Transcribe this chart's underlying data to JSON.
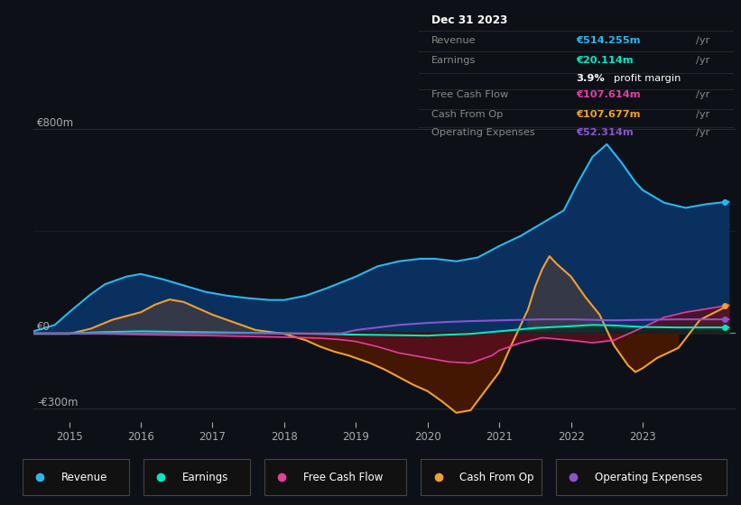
{
  "background_color": "#0d1117",
  "plot_bg_color": "#0d1117",
  "grid_color": "#2a2d3a",
  "text_color": "#aaaaaa",
  "x_ticks": [
    2015,
    2016,
    2017,
    2018,
    2019,
    2020,
    2021,
    2022,
    2023
  ],
  "x_min": 2014.5,
  "x_max": 2024.3,
  "y_min": -350,
  "y_max": 870,
  "revenue_color": "#2ab7f0",
  "earnings_color": "#00e8c6",
  "fcf_color": "#e040a0",
  "cashfromop_color": "#f0a030",
  "opex_color": "#8855cc",
  "info_box": {
    "title": "Dec 31 2023",
    "revenue_label": "Revenue",
    "revenue_value": "€514.255m",
    "earnings_label": "Earnings",
    "earnings_value": "€20.114m",
    "margin_pct": "3.9%",
    "margin_text": " profit margin",
    "fcf_label": "Free Cash Flow",
    "fcf_value": "€107.614m",
    "cop_label": "Cash From Op",
    "cop_value": "€107.677m",
    "opex_label": "Operating Expenses",
    "opex_value": "€52.314m"
  },
  "legend": [
    {
      "label": "Revenue",
      "color": "#2ab7f0"
    },
    {
      "label": "Earnings",
      "color": "#00e8c6"
    },
    {
      "label": "Free Cash Flow",
      "color": "#e040a0"
    },
    {
      "label": "Cash From Op",
      "color": "#f0a030"
    },
    {
      "label": "Operating Expenses",
      "color": "#8855cc"
    }
  ],
  "revenue_x": [
    2014.5,
    2014.8,
    2015.0,
    2015.3,
    2015.5,
    2015.8,
    2016.0,
    2016.3,
    2016.6,
    2016.9,
    2017.2,
    2017.5,
    2017.8,
    2018.0,
    2018.3,
    2018.6,
    2019.0,
    2019.3,
    2019.6,
    2019.9,
    2020.1,
    2020.4,
    2020.7,
    2021.0,
    2021.3,
    2021.6,
    2021.9,
    2022.1,
    2022.3,
    2022.5,
    2022.7,
    2022.9,
    2023.0,
    2023.3,
    2023.6,
    2023.9,
    2024.2
  ],
  "revenue_y": [
    5,
    30,
    80,
    150,
    190,
    220,
    230,
    210,
    185,
    160,
    145,
    135,
    128,
    128,
    145,
    175,
    220,
    260,
    280,
    290,
    290,
    280,
    295,
    340,
    380,
    430,
    480,
    590,
    690,
    740,
    670,
    590,
    560,
    510,
    490,
    505,
    514
  ],
  "earnings_x": [
    2014.5,
    2015.0,
    2015.5,
    2016.0,
    2016.5,
    2017.0,
    2017.5,
    2018.0,
    2018.5,
    2019.0,
    2019.5,
    2020.0,
    2020.3,
    2020.6,
    2021.0,
    2021.5,
    2022.0,
    2022.3,
    2022.6,
    2023.0,
    2023.5,
    2024.2
  ],
  "earnings_y": [
    -3,
    -3,
    2,
    5,
    3,
    1,
    -1,
    -3,
    -5,
    -8,
    -10,
    -12,
    -8,
    -5,
    5,
    18,
    25,
    30,
    28,
    22,
    20,
    20
  ],
  "fcf_x": [
    2014.5,
    2015.0,
    2015.5,
    2016.0,
    2016.5,
    2017.0,
    2017.5,
    2018.0,
    2018.5,
    2018.8,
    2019.0,
    2019.3,
    2019.6,
    2020.0,
    2020.3,
    2020.6,
    2020.9,
    2021.0,
    2021.3,
    2021.6,
    2022.0,
    2022.3,
    2022.6,
    2023.0,
    2023.3,
    2023.6,
    2024.2
  ],
  "fcf_y": [
    -3,
    -5,
    -5,
    -8,
    -10,
    -12,
    -15,
    -18,
    -22,
    -28,
    -35,
    -55,
    -80,
    -100,
    -115,
    -120,
    -90,
    -70,
    -40,
    -20,
    -30,
    -40,
    -30,
    20,
    60,
    80,
    107
  ],
  "cashfromop_x": [
    2014.5,
    2015.0,
    2015.3,
    2015.6,
    2016.0,
    2016.2,
    2016.4,
    2016.6,
    2016.8,
    2017.0,
    2017.3,
    2017.6,
    2018.0,
    2018.3,
    2018.5,
    2018.7,
    2018.9,
    2019.0,
    2019.2,
    2019.4,
    2019.6,
    2019.8,
    2020.0,
    2020.2,
    2020.4,
    2020.6,
    2020.8,
    2021.0,
    2021.2,
    2021.4,
    2021.5,
    2021.6,
    2021.7,
    2021.8,
    2022.0,
    2022.2,
    2022.4,
    2022.6,
    2022.8,
    2022.9,
    2023.0,
    2023.2,
    2023.5,
    2023.8,
    2024.2
  ],
  "cashfromop_y": [
    -5,
    -5,
    15,
    50,
    80,
    110,
    130,
    120,
    95,
    70,
    40,
    10,
    -5,
    -30,
    -55,
    -75,
    -90,
    -100,
    -120,
    -145,
    -175,
    -205,
    -230,
    -270,
    -315,
    -305,
    -230,
    -155,
    -30,
    90,
    180,
    250,
    300,
    270,
    220,
    140,
    70,
    -50,
    -130,
    -155,
    -140,
    -100,
    -60,
    50,
    107
  ],
  "opex_x": [
    2014.5,
    2015.5,
    2016.0,
    2017.0,
    2018.0,
    2018.8,
    2019.0,
    2019.3,
    2019.6,
    2020.0,
    2020.3,
    2020.6,
    2021.0,
    2021.3,
    2021.6,
    2022.0,
    2022.3,
    2022.6,
    2023.0,
    2023.5,
    2024.2
  ],
  "opex_y": [
    -3,
    -3,
    -3,
    -3,
    -3,
    -3,
    10,
    20,
    30,
    38,
    42,
    45,
    48,
    50,
    52,
    52,
    50,
    48,
    50,
    52,
    52
  ]
}
